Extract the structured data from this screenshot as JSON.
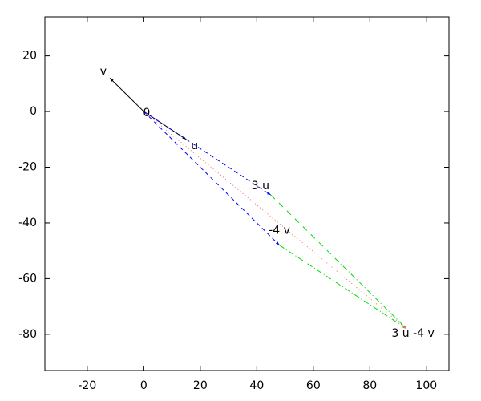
{
  "chart_data": {
    "type": "vector",
    "xlim": [
      -35,
      108
    ],
    "ylim": [
      -93,
      34
    ],
    "xticks": [
      -20,
      0,
      20,
      40,
      60,
      80,
      100
    ],
    "yticks": [
      -80,
      -60,
      -40,
      -20,
      0,
      20
    ],
    "points": [
      {
        "label": "0",
        "x": 0,
        "y": 0
      },
      {
        "label": "u",
        "x": 15,
        "y": -10
      },
      {
        "label": "v",
        "x": -12,
        "y": 12
      },
      {
        "label": "3 u",
        "x": 45,
        "y": -30
      },
      {
        "label": "-4 v",
        "x": 48,
        "y": -48
      },
      {
        "label": "3 u -4 v",
        "x": 93,
        "y": -78
      }
    ],
    "segments": [
      {
        "from": [
          0,
          0
        ],
        "to": [
          15,
          -10
        ],
        "color": "#000000",
        "style": "solid"
      },
      {
        "from": [
          0,
          0
        ],
        "to": [
          -12,
          12
        ],
        "color": "#000000",
        "style": "solid"
      },
      {
        "from": [
          0,
          0
        ],
        "to": [
          45,
          -30
        ],
        "color": "#0000ff",
        "style": "dashed"
      },
      {
        "from": [
          0,
          0
        ],
        "to": [
          48,
          -48
        ],
        "color": "#0000ff",
        "style": "dashed"
      },
      {
        "from": [
          45,
          -30
        ],
        "to": [
          93,
          -78
        ],
        "color": "#00dd00",
        "style": "dashdot"
      },
      {
        "from": [
          48,
          -48
        ],
        "to": [
          93,
          -78
        ],
        "color": "#00dd00",
        "style": "dashdot"
      },
      {
        "from": [
          0,
          0
        ],
        "to": [
          93,
          -78
        ],
        "color": "#ff6666",
        "style": "dotted"
      }
    ]
  }
}
